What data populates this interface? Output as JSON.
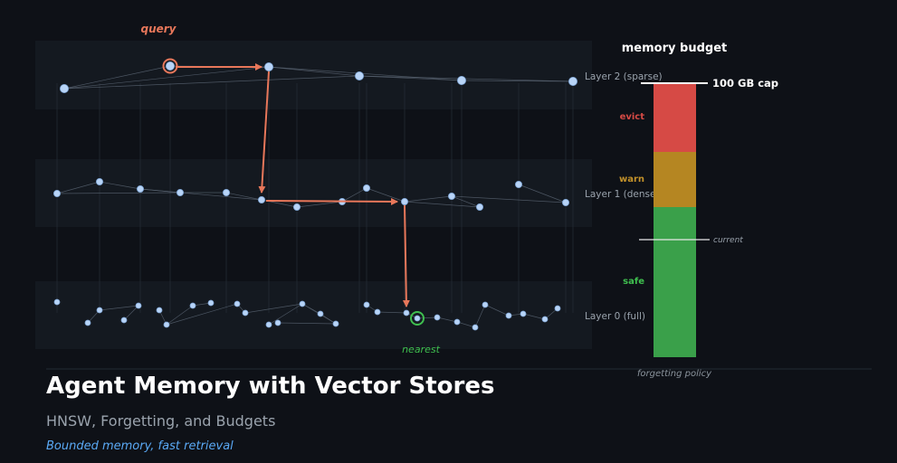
{
  "diagram": {
    "query_label": "query",
    "nearest_label": "nearest",
    "layers": [
      {
        "id": "layer2",
        "label": "Layer 2 (sparse)"
      },
      {
        "id": "layer1",
        "label": "Layer 1 (dense)"
      },
      {
        "id": "layer0",
        "label": "Layer 0 (full)"
      }
    ]
  },
  "budget": {
    "title": "memory budget",
    "cap_label": "100 GB cap",
    "current_label": "current",
    "policy_label": "forgetting policy",
    "zones": [
      {
        "label": "evict",
        "color": "#d64a45"
      },
      {
        "label": "warn",
        "color": "#b58622"
      },
      {
        "label": "safe",
        "color": "#3aa04a"
      }
    ]
  },
  "colors": {
    "background": "#0e1117",
    "band": "#141920",
    "node": "#b8d4f7",
    "path": "#e8775a",
    "nearest": "#3fbf4f",
    "edge": "#4a5563"
  },
  "footer": {
    "title": "Agent Memory with Vector Stores",
    "subtitle": "HNSW, Forgetting, and Budgets",
    "tagline": "Bounded memory, fast retrieval"
  }
}
